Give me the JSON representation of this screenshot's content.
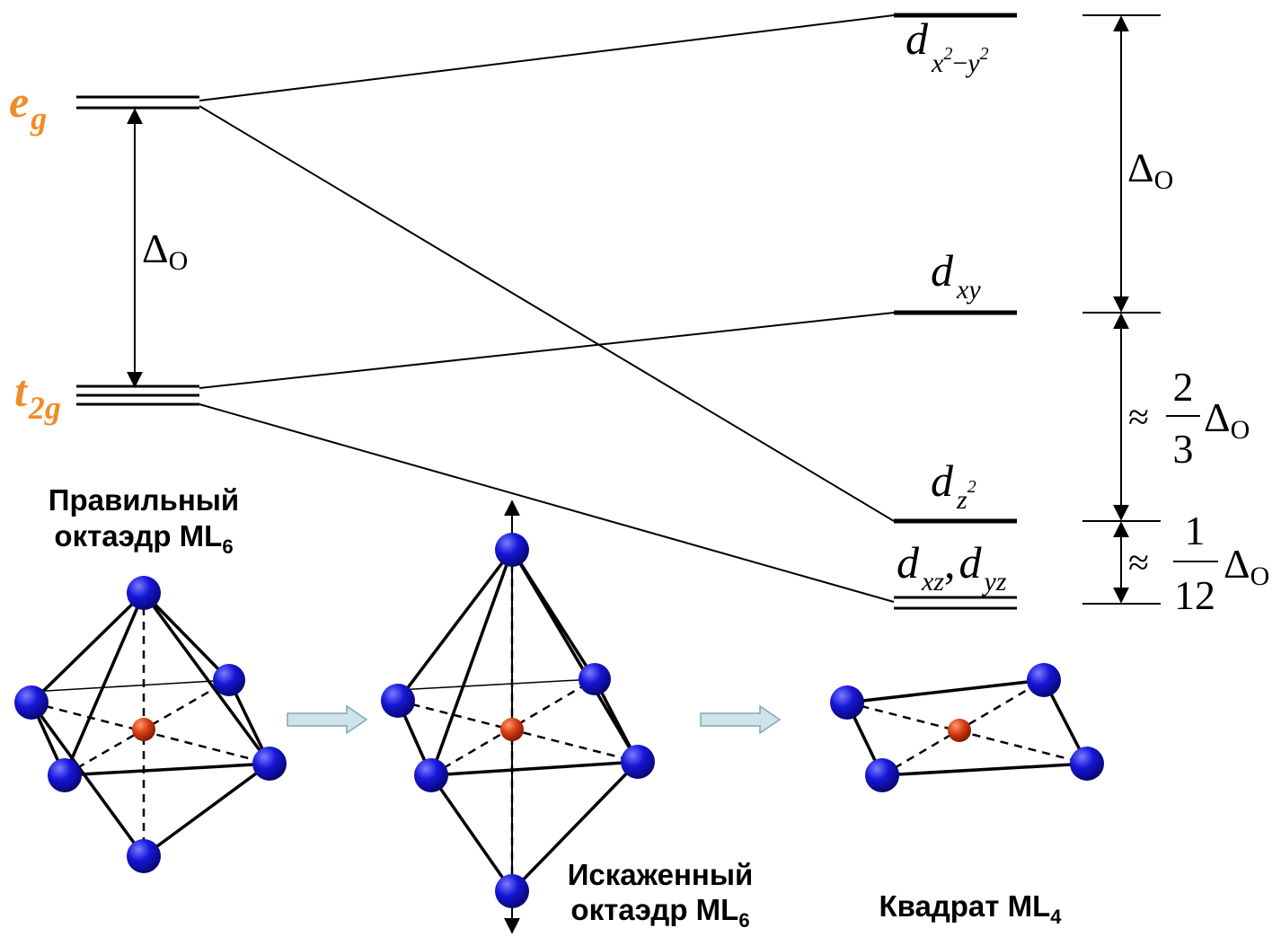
{
  "labels": {
    "eg_main": "e",
    "eg_sub": "g",
    "t2g_main": "t",
    "t2g_sub": "2g",
    "delta": "Δ",
    "delta_sub": "O",
    "d_letter": "d",
    "dx2y2_sub_x": "x",
    "dx2y2_sup_2a": "2",
    "dx2y2_minus": "−",
    "dx2y2_sub_y": "y",
    "dx2y2_sup_2b": "2",
    "dxy_sub": "xy",
    "dz2_sub": "z",
    "dz2_sup": "2",
    "dxz_sub": "xz",
    "comma": ",",
    "dyz_sub": "yz",
    "approx": "≈",
    "frac1_num": "2",
    "frac1_den": "3",
    "frac2_num": "1",
    "frac2_den": "12"
  },
  "captions": {
    "regular_line1": "Правильный",
    "regular_line2": "октаэдр ML",
    "regular_sub": "6",
    "distorted_line1": "Искаженный",
    "distorted_line2": "октаэдр ML",
    "distorted_sub": "6",
    "square_line": "Квадрат ML",
    "square_sub": "4"
  },
  "colors": {
    "accent_orange": "#F28C28",
    "ligand_blue": "#1010C8",
    "metal_red": "#D23A12",
    "arrow_fill": "#CFE3EA",
    "arrow_stroke": "#7FA8B8",
    "line": "#000000"
  }
}
